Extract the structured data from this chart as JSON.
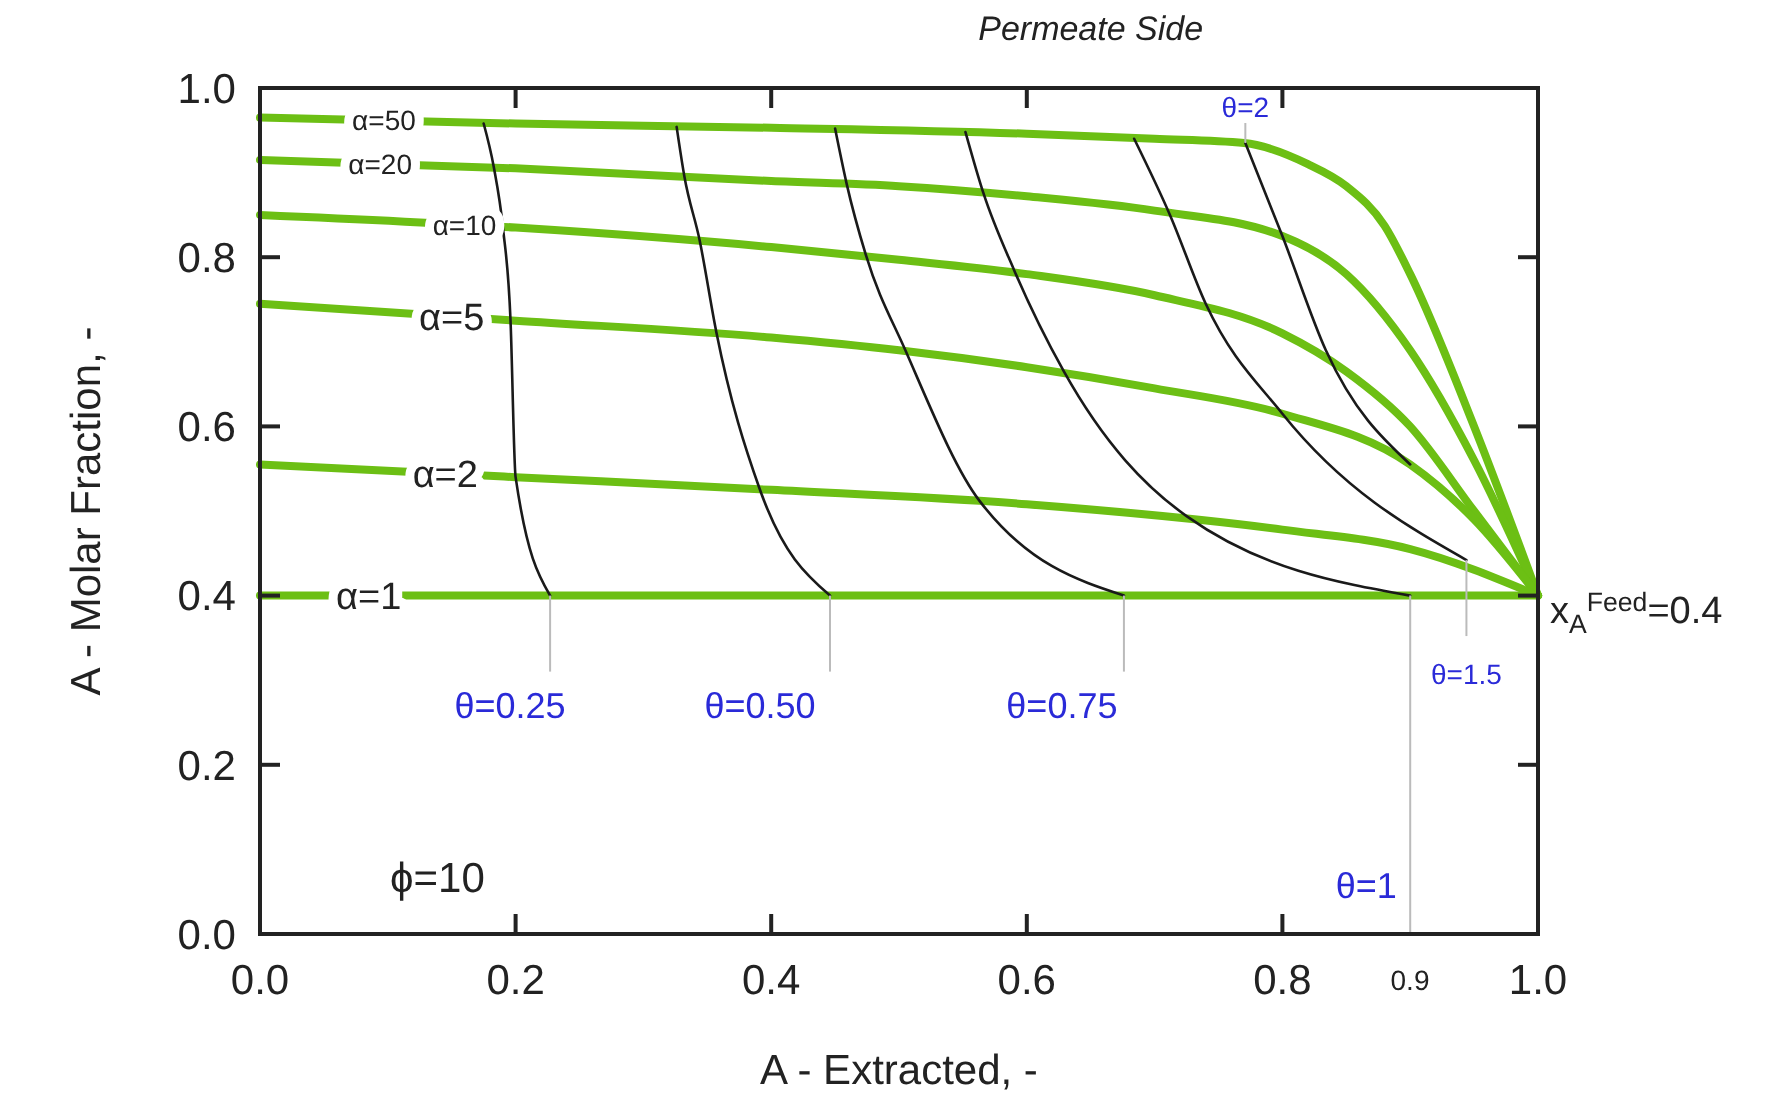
{
  "chart_data": {
    "type": "line",
    "title": "Permeate Side",
    "xlabel": "A - Extracted, -",
    "ylabel": "A - Molar Fraction, -",
    "xlim": [
      0,
      1
    ],
    "ylim": [
      0,
      1
    ],
    "xticks": [
      {
        "value": 0,
        "label": "0.0"
      },
      {
        "value": 0.2,
        "label": "0.2"
      },
      {
        "value": 0.4,
        "label": "0.4"
      },
      {
        "value": 0.6,
        "label": "0.6"
      },
      {
        "value": 0.8,
        "label": "0.8"
      },
      {
        "value": 1,
        "label": "1.0"
      }
    ],
    "yticks": [
      {
        "value": 0,
        "label": "0.0"
      },
      {
        "value": 0.2,
        "label": "0.2"
      },
      {
        "value": 0.4,
        "label": "0.4"
      },
      {
        "value": 0.6,
        "label": "0.6"
      },
      {
        "value": 0.8,
        "label": "0.8"
      },
      {
        "value": 1,
        "label": "1.0"
      }
    ],
    "grid": false,
    "marker": "none",
    "line_style": "solid",
    "series": [
      {
        "name": "α=50",
        "color": "#6cbf14",
        "x": [
          0,
          0.2,
          0.4,
          0.6,
          0.7,
          0.77,
          0.82,
          0.85,
          0.88,
          0.9,
          0.95,
          1
        ],
        "values": [
          0.965,
          0.958,
          0.953,
          0.946,
          0.94,
          0.935,
          0.91,
          0.884,
          0.837,
          0.78,
          0.6,
          0.4
        ]
      },
      {
        "name": "α=20",
        "color": "#6cbf14",
        "x": [
          0,
          0.2,
          0.4,
          0.5,
          0.6,
          0.7,
          0.8,
          0.85,
          0.9,
          0.95,
          1
        ],
        "values": [
          0.915,
          0.905,
          0.89,
          0.884,
          0.872,
          0.855,
          0.825,
          0.78,
          0.69,
          0.56,
          0.4
        ]
      },
      {
        "name": "α=10",
        "color": "#6cbf14",
        "x": [
          0,
          0.2,
          0.4,
          0.5,
          0.6,
          0.7,
          0.8,
          0.85,
          0.9,
          0.95,
          1
        ],
        "values": [
          0.85,
          0.835,
          0.812,
          0.797,
          0.78,
          0.755,
          0.71,
          0.665,
          0.6,
          0.5,
          0.4
        ]
      },
      {
        "name": "α=5",
        "color": "#6cbf14",
        "x": [
          0,
          0.2,
          0.4,
          0.5,
          0.6,
          0.7,
          0.8,
          0.9,
          0.95,
          1
        ],
        "values": [
          0.745,
          0.725,
          0.705,
          0.69,
          0.67,
          0.645,
          0.615,
          0.555,
          0.49,
          0.4
        ]
      },
      {
        "name": "α=2",
        "color": "#6cbf14",
        "x": [
          0,
          0.2,
          0.4,
          0.6,
          0.8,
          0.9,
          1
        ],
        "values": [
          0.555,
          0.54,
          0.525,
          0.508,
          0.478,
          0.455,
          0.4
        ]
      },
      {
        "name": "α=1",
        "color": "#6cbf14",
        "x": [
          0,
          1
        ],
        "values": [
          0.4,
          0.4
        ]
      },
      {
        "color": "#1a1a1a",
        "x": [
          0.175,
          0.183,
          0.19,
          0.196,
          0.2,
          0.227
        ],
        "values": [
          0.958,
          0.906,
          0.836,
          0.726,
          0.54,
          0.4
        ]
      },
      {
        "color": "#1a1a1a",
        "x": [
          0.326,
          0.332,
          0.344,
          0.357,
          0.391,
          0.446
        ],
        "values": [
          0.954,
          0.896,
          0.82,
          0.712,
          0.526,
          0.4
        ]
      },
      {
        "color": "#1a1a1a",
        "x": [
          0.45,
          0.459,
          0.474,
          0.505,
          0.563,
          0.676
        ],
        "values": [
          0.952,
          0.887,
          0.803,
          0.69,
          0.512,
          0.4
        ]
      },
      {
        "color": "#1a1a1a",
        "x": [
          0.552,
          0.566,
          0.59,
          0.629,
          0.725,
          0.9
        ],
        "values": [
          0.948,
          0.876,
          0.785,
          0.665,
          0.494,
          0.4
        ]
      },
      {
        "color": "#1a1a1a",
        "x": [
          0.684,
          0.712,
          0.74,
          0.8,
          0.944
        ],
        "values": [
          0.94,
          0.85,
          0.745,
          0.615,
          0.442
        ]
      },
      {
        "color": "#1a1a1a",
        "x": [
          0.771,
          0.8,
          0.834,
          0.9
        ],
        "values": [
          0.935,
          0.825,
          0.69,
          0.555
        ]
      }
    ],
    "annotations": [
      {
        "text": "θ=0.25",
        "x": 0.227,
        "y": 0.4
      },
      {
        "text": "θ=0.50",
        "x": 0.446,
        "y": 0.4
      },
      {
        "text": "θ=0.75",
        "x": 0.676,
        "y": 0.4
      },
      {
        "text": "θ=1",
        "x": 0.9,
        "y": 0.4
      },
      {
        "text": "θ=1.5",
        "x": 0.944,
        "y": 0.442
      },
      {
        "text": "θ=2",
        "x": 0.771,
        "y": 0.935
      },
      "0.9",
      {
        "text": "x$_{A}$$^{Feed}$=0.4",
        "x": 1,
        "y": 0.4
      },
      "ϕ=10"
    ]
  }
}
